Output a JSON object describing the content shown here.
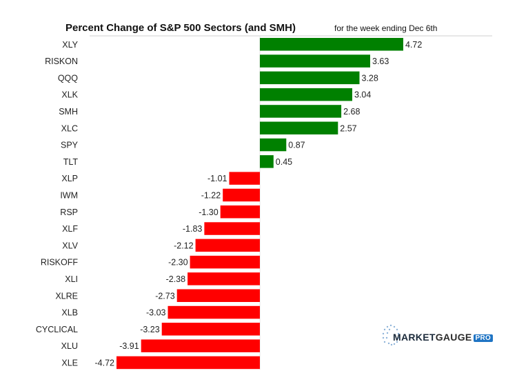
{
  "chart_data": {
    "type": "bar",
    "orientation": "horizontal",
    "title": "Percent Change of S&P 500 Sectors (and SMH)",
    "subtitle": "for the week ending Dec 6th",
    "categories": [
      "XLY",
      "RISKON",
      "QQQ",
      "XLK",
      "SMH",
      "XLC",
      "SPY",
      "TLT",
      "XLP",
      "IWM",
      "RSP",
      "XLF",
      "XLV",
      "RISKOFF",
      "XLI",
      "XLRE",
      "XLB",
      "CYCLICAL",
      "XLU",
      "XLE"
    ],
    "values": [
      4.72,
      3.63,
      3.28,
      3.04,
      2.68,
      2.57,
      0.87,
      0.45,
      -1.01,
      -1.22,
      -1.3,
      -1.83,
      -2.12,
      -2.3,
      -2.38,
      -2.73,
      -3.03,
      -3.23,
      -3.91,
      -4.72
    ],
    "value_labels": [
      "4.72",
      "3.63",
      "3.28",
      "3.04",
      "2.68",
      "2.57",
      "0.87",
      "0.45",
      "-1.01",
      "-1.22",
      "-1.30",
      "-1.83",
      "-2.12",
      "-2.30",
      "-2.38",
      "-2.73",
      "-3.03",
      "-3.23",
      "-3.91",
      "-4.72"
    ],
    "xlim": [
      -4.72,
      4.72
    ],
    "grid": false,
    "legend": "none",
    "colors": {
      "positive": "#008000",
      "negative": "#ff0000"
    }
  },
  "logo": {
    "brand_a": "MARKET",
    "brand_b": "GAUGE",
    "badge": "PRO"
  }
}
